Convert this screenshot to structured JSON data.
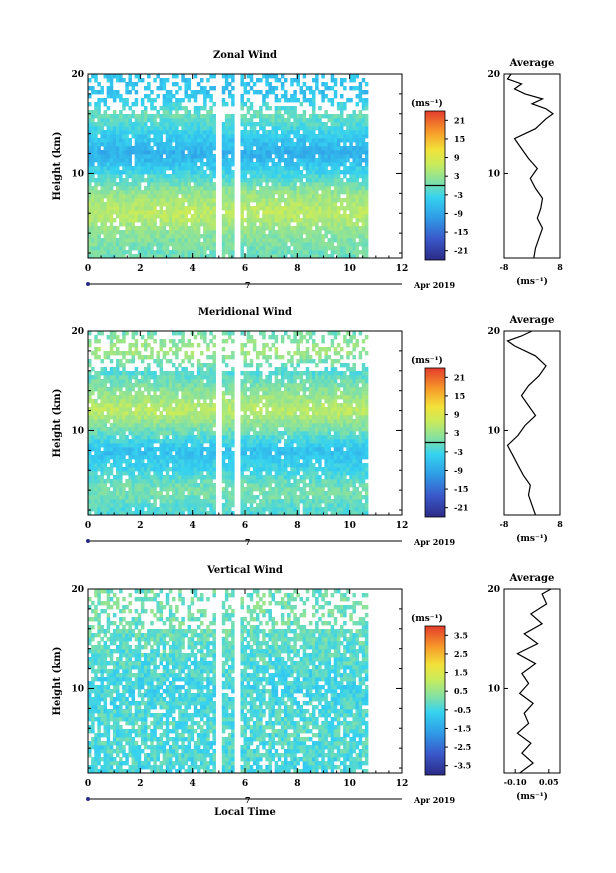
{
  "chart_data": [
    {
      "type": "heatmap",
      "title": "Zonal Wind",
      "xlabel": "",
      "ylabel": "Height (km)",
      "xlim": [
        0,
        12
      ],
      "ylim": [
        1.5,
        20
      ],
      "x_ticks": [
        "0",
        "2",
        "4",
        "6",
        "8",
        "10",
        "12"
      ],
      "y_ticks": [
        "10",
        "20"
      ],
      "date_label": "Apr 2019",
      "date_marker": "7",
      "colorbar": {
        "unit": "(ms⁻¹)",
        "min": -24,
        "max": 24,
        "ticks": [
          "21",
          "15",
          "9",
          "3",
          "-3",
          "-9",
          "-15",
          "-21"
        ],
        "zero_line": 0
      },
      "data_gaps_hours": [
        [
          4.9,
          5.1
        ],
        [
          5.6,
          5.8
        ]
      ],
      "data_end_hour": 10.7,
      "height_profile_m_s": [
        [
          2,
          0
        ],
        [
          4,
          2
        ],
        [
          6,
          6
        ],
        [
          8,
          3
        ],
        [
          10,
          -3
        ],
        [
          12,
          -8
        ],
        [
          14,
          -4
        ],
        [
          16,
          0
        ],
        [
          18,
          -6
        ],
        [
          20,
          -5
        ]
      ],
      "average": {
        "title": "Average",
        "xlabel": "(ms⁻¹)",
        "xlim": [
          -8,
          8
        ],
        "x_ticks": [
          "-8",
          "8"
        ],
        "y_ticks": [
          "10",
          "20"
        ],
        "profile": [
          [
            1.5,
            0.5
          ],
          [
            2.5,
            1
          ],
          [
            3.5,
            2
          ],
          [
            4.5,
            3
          ],
          [
            5.5,
            1.5
          ],
          [
            6.5,
            2.5
          ],
          [
            7.5,
            3
          ],
          [
            8.5,
            1
          ],
          [
            9.5,
            -0.5
          ],
          [
            10.5,
            1.5
          ],
          [
            11.5,
            -1
          ],
          [
            12.5,
            -3
          ],
          [
            13.5,
            -5
          ],
          [
            14.5,
            1
          ],
          [
            15.5,
            4
          ],
          [
            16,
            6
          ],
          [
            16.5,
            4
          ],
          [
            17,
            0
          ],
          [
            17.5,
            3
          ],
          [
            18,
            -2
          ],
          [
            18.5,
            -5
          ],
          [
            19,
            -3
          ],
          [
            19.5,
            -7
          ],
          [
            20,
            -6
          ]
        ]
      }
    },
    {
      "type": "heatmap",
      "title": "Meridional Wind",
      "xlabel": "",
      "ylabel": "Height (km)",
      "xlim": [
        0,
        12
      ],
      "ylim": [
        1.5,
        20
      ],
      "x_ticks": [
        "0",
        "2",
        "4",
        "6",
        "8",
        "10",
        "12"
      ],
      "y_ticks": [
        "10",
        "20"
      ],
      "date_label": "Apr 2019",
      "date_marker": "7",
      "colorbar": {
        "unit": "(ms⁻¹)",
        "min": -24,
        "max": 24,
        "ticks": [
          "21",
          "15",
          "9",
          "3",
          "-3",
          "-9",
          "-15",
          "-21"
        ],
        "zero_line": 0
      },
      "data_gaps_hours": [
        [
          4.9,
          5.1
        ],
        [
          5.6,
          5.8
        ]
      ],
      "data_end_hour": 10.7,
      "height_profile_m_s": [
        [
          2,
          -2
        ],
        [
          4,
          1
        ],
        [
          6,
          -3
        ],
        [
          8,
          -6
        ],
        [
          10,
          0
        ],
        [
          12,
          6
        ],
        [
          14,
          2
        ],
        [
          16,
          -2
        ],
        [
          18,
          4
        ],
        [
          20,
          0
        ]
      ],
      "average": {
        "title": "Average",
        "xlabel": "(ms⁻¹)",
        "xlim": [
          -8,
          8
        ],
        "x_ticks": [
          "-8",
          "8"
        ],
        "y_ticks": [
          "10",
          "20"
        ],
        "profile": [
          [
            1.5,
            1
          ],
          [
            2.5,
            0
          ],
          [
            3.5,
            -1
          ],
          [
            4.5,
            -0.5
          ],
          [
            5.5,
            -2.5
          ],
          [
            6.5,
            -4
          ],
          [
            7.5,
            -5.5
          ],
          [
            8.5,
            -7
          ],
          [
            9.5,
            -4
          ],
          [
            10.5,
            -2
          ],
          [
            11.5,
            1
          ],
          [
            12.5,
            -1
          ],
          [
            13.5,
            -3
          ],
          [
            14.5,
            -1
          ],
          [
            15.5,
            2
          ],
          [
            16.5,
            4
          ],
          [
            17.5,
            1
          ],
          [
            18.5,
            -5
          ],
          [
            19,
            -7
          ],
          [
            19.5,
            -3
          ],
          [
            20,
            0
          ]
        ]
      }
    },
    {
      "type": "heatmap",
      "title": "Vertical Wind",
      "xlabel": "Local Time",
      "ylabel": "Height (km)",
      "xlim": [
        0,
        12
      ],
      "ylim": [
        1.5,
        20
      ],
      "x_ticks": [
        "0",
        "2",
        "4",
        "6",
        "8",
        "10",
        "12"
      ],
      "y_ticks": [
        "10",
        "20"
      ],
      "date_label": "Apr 2019",
      "date_marker": "7",
      "colorbar": {
        "unit": "(ms⁻¹)",
        "min": -4,
        "max": 4,
        "ticks": [
          "3.5",
          "2.5",
          "1.5",
          "0.5",
          "-0.5",
          "-1.5",
          "-2.5",
          "-3.5"
        ],
        "zero_line": null
      },
      "data_gaps_hours": [
        [
          4.9,
          5.1
        ],
        [
          5.6,
          5.8
        ]
      ],
      "data_end_hour": 10.7,
      "height_profile_m_s": [
        [
          2,
          -0.4
        ],
        [
          6,
          -0.3
        ],
        [
          10,
          -0.5
        ],
        [
          14,
          -0.2
        ],
        [
          18,
          0.1
        ],
        [
          20,
          0
        ]
      ],
      "average": {
        "title": "Average",
        "xlabel": "(ms⁻¹)",
        "xlim": [
          -0.15,
          0.1
        ],
        "x_ticks": [
          "-0.10",
          "0.05"
        ],
        "y_ticks": [
          "10",
          "20"
        ],
        "profile": [
          [
            1.5,
            -0.08
          ],
          [
            2.5,
            -0.02
          ],
          [
            3.5,
            -0.07
          ],
          [
            4.5,
            -0.03
          ],
          [
            5.5,
            -0.09
          ],
          [
            6.5,
            -0.04
          ],
          [
            7.5,
            -0.06
          ],
          [
            8.5,
            -0.02
          ],
          [
            9.5,
            -0.08
          ],
          [
            10.5,
            -0.04
          ],
          [
            11.5,
            -0.07
          ],
          [
            12.5,
            -0.01
          ],
          [
            13.5,
            -0.09
          ],
          [
            14.5,
            0.0
          ],
          [
            15.5,
            -0.06
          ],
          [
            16.5,
            0.02
          ],
          [
            17.5,
            -0.03
          ],
          [
            18.5,
            0.04
          ],
          [
            19.5,
            0.02
          ],
          [
            20,
            0.06
          ]
        ]
      }
    }
  ]
}
